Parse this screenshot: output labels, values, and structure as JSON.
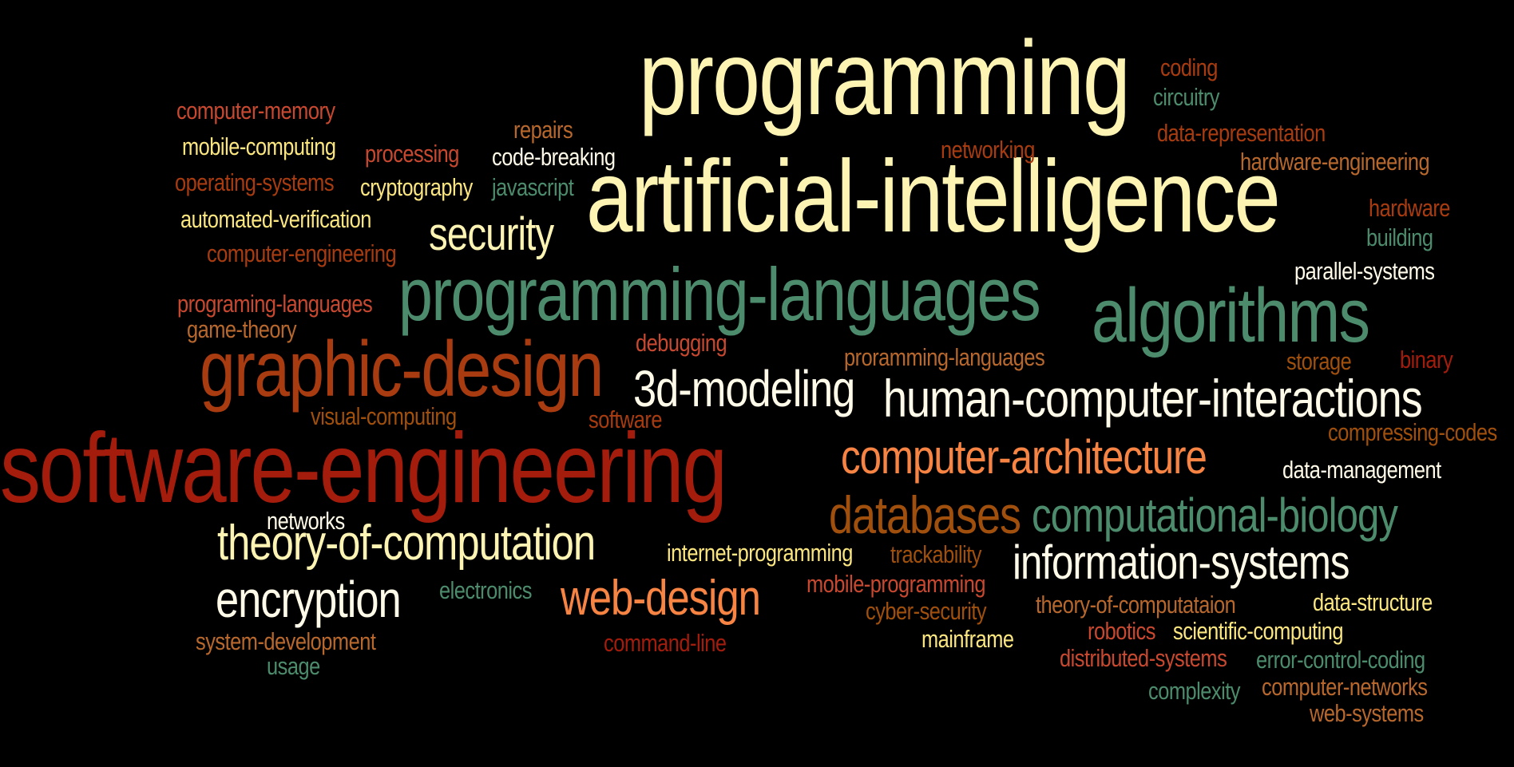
{
  "words": {
    "programming": "programming",
    "artificial_intelligence": "artificial-intelligence",
    "programming_languages": "programming-languages",
    "algorithms": "algorithms",
    "graphic_design": "graphic-design",
    "software_engineering": "software-engineering",
    "human_computer_interactions": "human-computer-interactions",
    "three_d_modeling": "3d-modeling",
    "security": "security",
    "computer_architecture": "computer-architecture",
    "databases": "databases",
    "computational_biology": "computational-biology",
    "theory_of_computation": "theory-of-computation",
    "information_systems": "information-systems",
    "encryption": "encryption",
    "web_design": "web-design",
    "computer_memory": "computer-memory",
    "mobile_computing": "mobile-computing",
    "processing": "processing",
    "code_breaking": "code-breaking",
    "repairs": "repairs",
    "operating_systems": "operating-systems",
    "cryptography": "cryptography",
    "javascript": "javascript",
    "automated_verification": "automated-verification",
    "computer_engineering": "computer-engineering",
    "programing_languages": "programing-languages",
    "game_theory": "game-theory",
    "coding": "coding",
    "circuitry": "circuitry",
    "data_representation": "data-representation",
    "networking": "networking",
    "hardware_engineering": "hardware-engineering",
    "hardware": "hardware",
    "building": "building",
    "parallel_systems": "parallel-systems",
    "debugging": "debugging",
    "proramming_languages": "proramming-languages",
    "storage": "storage",
    "binary": "binary",
    "visual_computing": "visual-computing",
    "software": "software",
    "compressing_codes": "compressing-codes",
    "data_management": "data-management",
    "networks": "networks",
    "internet_programming": "internet-programming",
    "trackability": "trackability",
    "mobile_programming": "mobile-programming",
    "electronics": "electronics",
    "cyber_security": "cyber-security",
    "theory_of_computataion": "theory-of-computataion",
    "data_structure": "data-structure",
    "system_development": "system-development",
    "command_line": "command-line",
    "mainframe": "mainframe",
    "robotics": "robotics",
    "scientific_computing": "scientific-computing",
    "usage": "usage",
    "distributed_systems": "distributed-systems",
    "error_control_coding": "error-control-coding",
    "complexity": "complexity",
    "computer_networks": "computer-networks",
    "web_systems": "web-systems"
  },
  "colors": {
    "background": "#000000",
    "cream": "#fdf4b4",
    "yellow": "#fbe680",
    "green": "#4c8c6c",
    "red": "#a41c0c",
    "rust": "#a83c10",
    "orange": "#f88444",
    "brown": "#a0500c",
    "coral": "#c84830",
    "tan": "#b8682c"
  }
}
